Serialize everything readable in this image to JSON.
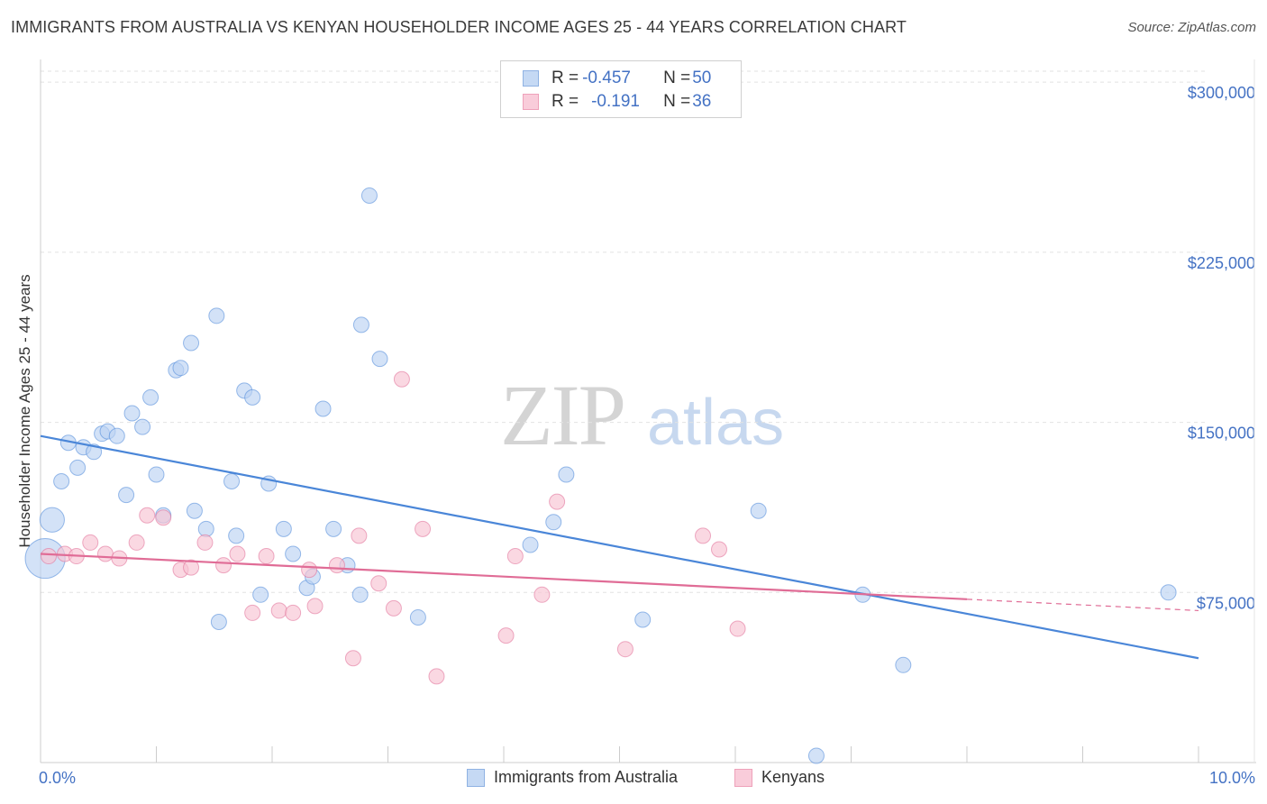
{
  "title": "IMMIGRANTS FROM AUSTRALIA VS KENYAN HOUSEHOLDER INCOME AGES 25 - 44 YEARS CORRELATION CHART",
  "source": "Source: ZipAtlas.com",
  "watermark": {
    "part1": "ZIP",
    "part2": "atlas"
  },
  "legend": {
    "rows": [
      {
        "r_label": "R = ",
        "r_value": "-0.457",
        "n_label": "N = ",
        "n_value": "50",
        "color": "#a8c4ec"
      },
      {
        "r_label": "R = ",
        "r_value": "-0.191",
        "n_label": "N = ",
        "n_value": "36",
        "color": "#f4b8ca"
      }
    ]
  },
  "bottom_legend": [
    "Immigrants from Australia",
    "Kenyans"
  ],
  "chart_data": {
    "type": "scatter",
    "title": "IMMIGRANTS FROM AUSTRALIA VS KENYAN HOUSEHOLDER INCOME AGES 25 - 44 YEARS CORRELATION CHART",
    "xlabel": "",
    "ylabel": "Householder Income Ages 25 - 44 years",
    "xlim": [
      0,
      10
    ],
    "ylim": [
      0,
      310000
    ],
    "x_tick_labels": [
      "0.0%",
      "10.0%"
    ],
    "y_ticks": [
      75000,
      150000,
      225000,
      300000
    ],
    "y_tick_labels": [
      "$75,000",
      "$150,000",
      "$225,000",
      "$300,000"
    ],
    "grid": true,
    "legend_position": "top-center",
    "series": [
      {
        "name": "Immigrants from Australia",
        "color": "#4a86d8",
        "fill": "#bcd3f2",
        "points": [
          [
            0.1,
            107000,
            1.6
          ],
          [
            0.04,
            90000,
            2.6
          ],
          [
            0.18,
            124000,
            1
          ],
          [
            0.24,
            141000,
            1
          ],
          [
            0.32,
            130000,
            1
          ],
          [
            0.37,
            139000,
            1
          ],
          [
            0.46,
            137000,
            1
          ],
          [
            0.53,
            145000,
            1
          ],
          [
            0.58,
            146000,
            1
          ],
          [
            0.66,
            144000,
            1
          ],
          [
            0.74,
            118000,
            1
          ],
          [
            0.79,
            154000,
            1
          ],
          [
            0.88,
            148000,
            1
          ],
          [
            0.95,
            161000,
            1
          ],
          [
            1.0,
            127000,
            1
          ],
          [
            1.06,
            109000,
            1
          ],
          [
            1.17,
            173000,
            1
          ],
          [
            1.21,
            174000,
            1
          ],
          [
            1.3,
            185000,
            1
          ],
          [
            1.33,
            111000,
            1
          ],
          [
            1.43,
            103000,
            1
          ],
          [
            1.52,
            197000,
            1
          ],
          [
            1.54,
            62000,
            1
          ],
          [
            1.65,
            124000,
            1
          ],
          [
            1.69,
            100000,
            1
          ],
          [
            1.76,
            164000,
            1
          ],
          [
            1.83,
            161000,
            1
          ],
          [
            1.9,
            74000,
            1
          ],
          [
            1.97,
            123000,
            1
          ],
          [
            2.1,
            103000,
            1
          ],
          [
            2.18,
            92000,
            1
          ],
          [
            2.3,
            77000,
            1
          ],
          [
            2.35,
            82000,
            1
          ],
          [
            2.44,
            156000,
            1
          ],
          [
            2.53,
            103000,
            1
          ],
          [
            2.65,
            87000,
            1
          ],
          [
            2.76,
            74000,
            1
          ],
          [
            2.77,
            193000,
            1
          ],
          [
            2.84,
            250000,
            1
          ],
          [
            2.93,
            178000,
            1
          ],
          [
            3.26,
            64000,
            1
          ],
          [
            4.23,
            96000,
            1
          ],
          [
            4.43,
            106000,
            1
          ],
          [
            4.54,
            127000,
            1
          ],
          [
            5.2,
            63000,
            1
          ],
          [
            6.2,
            111000,
            1
          ],
          [
            7.1,
            74000,
            1
          ],
          [
            7.45,
            43000,
            1
          ],
          [
            6.7,
            3000,
            1
          ],
          [
            9.74,
            75000,
            1
          ]
        ],
        "trend": {
          "x1": 0,
          "y1": 144000,
          "x2": 10,
          "y2": 46000
        }
      },
      {
        "name": "Kenyans",
        "color": "#e06c96",
        "fill": "#f7c3d3",
        "points": [
          [
            0.07,
            91000,
            1
          ],
          [
            0.21,
            92000,
            1
          ],
          [
            0.31,
            91000,
            1
          ],
          [
            0.43,
            97000,
            1
          ],
          [
            0.56,
            92000,
            1
          ],
          [
            0.68,
            90000,
            1
          ],
          [
            0.83,
            97000,
            1
          ],
          [
            0.92,
            109000,
            1
          ],
          [
            1.06,
            108000,
            1
          ],
          [
            1.21,
            85000,
            1
          ],
          [
            1.3,
            86000,
            1
          ],
          [
            1.42,
            97000,
            1
          ],
          [
            1.58,
            87000,
            1
          ],
          [
            1.7,
            92000,
            1
          ],
          [
            1.83,
            66000,
            1
          ],
          [
            1.95,
            91000,
            1
          ],
          [
            2.06,
            67000,
            1
          ],
          [
            2.18,
            66000,
            1
          ],
          [
            2.32,
            85000,
            1
          ],
          [
            2.37,
            69000,
            1
          ],
          [
            2.56,
            87000,
            1
          ],
          [
            2.7,
            46000,
            1
          ],
          [
            2.75,
            100000,
            1
          ],
          [
            2.92,
            79000,
            1
          ],
          [
            3.05,
            68000,
            1
          ],
          [
            3.12,
            169000,
            1
          ],
          [
            3.3,
            103000,
            1
          ],
          [
            3.42,
            38000,
            1
          ],
          [
            4.02,
            56000,
            1
          ],
          [
            4.1,
            91000,
            1
          ],
          [
            4.33,
            74000,
            1
          ],
          [
            4.46,
            115000,
            1
          ],
          [
            5.05,
            50000,
            1
          ],
          [
            5.72,
            100000,
            1
          ],
          [
            5.86,
            94000,
            1
          ],
          [
            6.02,
            59000,
            1
          ]
        ],
        "trend": {
          "x1": 0,
          "y1": 92000,
          "x2": 8,
          "y2": 72000
        },
        "trend_dashed_extension": {
          "x1": 8,
          "y1": 72000,
          "x2": 10,
          "y2": 67000
        }
      }
    ]
  }
}
